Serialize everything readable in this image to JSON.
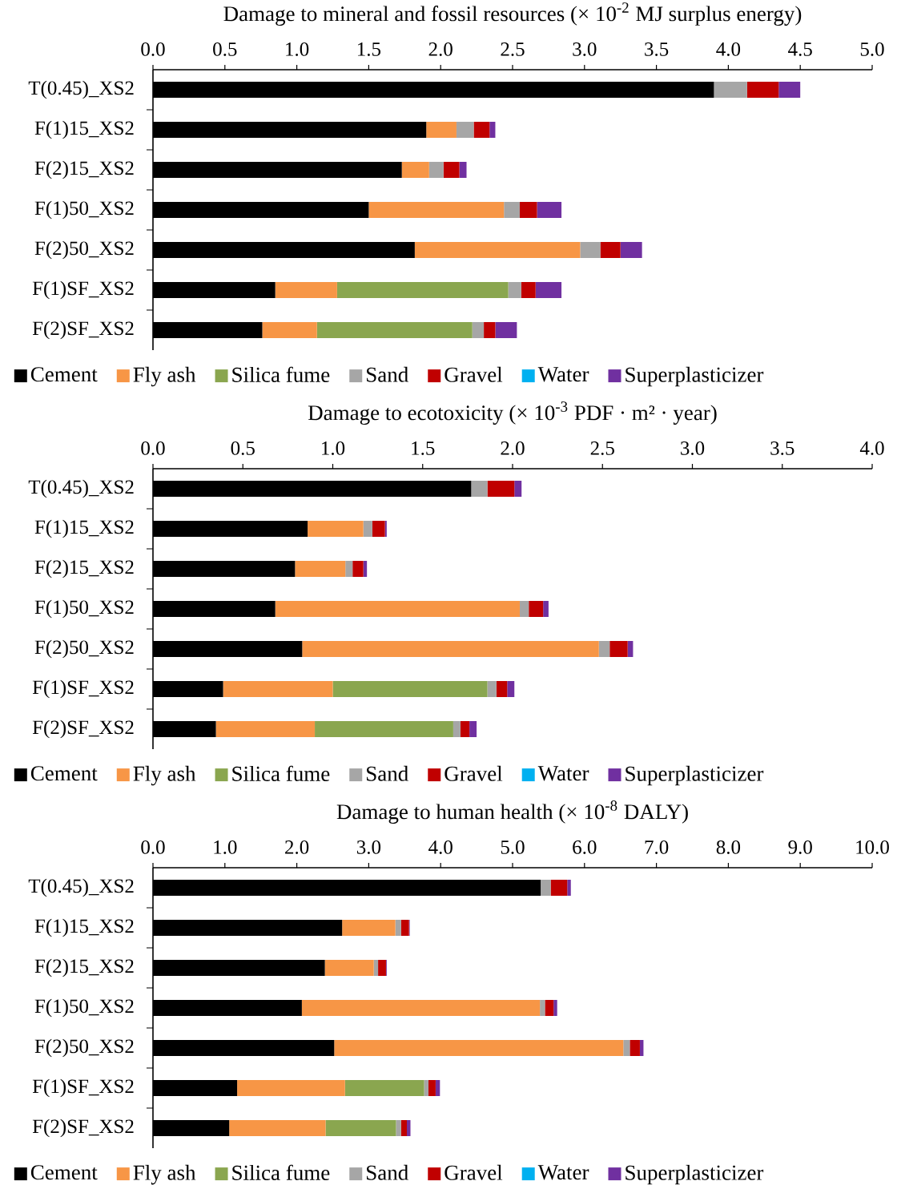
{
  "chart_data": [
    {
      "type": "bar",
      "orientation": "horizontal",
      "stacked": true,
      "legend": "bottom",
      "title": "Damage to mineral and fossil resources (× 10$^{-2}$  MJ surplus energy)",
      "categories": [
        "T(0.45)_XS2",
        "F(1)15_XS2",
        "F(2)15_XS2",
        "F(1)50_XS2",
        "F(2)50_XS2",
        "F(1)SF_XS2",
        "F(2)SF_XS2"
      ],
      "xlim": [
        0,
        5
      ],
      "xticks": [
        {
          "value": 0,
          "label": "0.0"
        },
        {
          "value": 0.5,
          "label": "0.5"
        },
        {
          "value": 1,
          "label": "1.0"
        },
        {
          "value": 1.5,
          "label": "1.5"
        },
        {
          "value": 2,
          "label": "2.0"
        },
        {
          "value": 2.5,
          "label": "2.5"
        },
        {
          "value": 3,
          "label": "3.0"
        },
        {
          "value": 3.5,
          "label": "3.5"
        },
        {
          "value": 4,
          "label": "4.0"
        },
        {
          "value": 4.5,
          "label": "4.5"
        },
        {
          "value": 5,
          "label": "5.0"
        }
      ],
      "series": [
        {
          "name": "Cement",
          "color": "#000000",
          "values": [
            3.9,
            1.9,
            1.73,
            1.5,
            1.82,
            0.85,
            0.76
          ]
        },
        {
          "name": "Fly ash",
          "color": "#f79646",
          "values": [
            0,
            0.21,
            0.19,
            0.94,
            1.15,
            0.43,
            0.38
          ]
        },
        {
          "name": "Silica fume",
          "color": "#8aa64f",
          "values": [
            0,
            0,
            0,
            0,
            0,
            1.19,
            1.08
          ]
        },
        {
          "name": "Sand",
          "color": "#a6a6a6",
          "values": [
            0.23,
            0.12,
            0.1,
            0.11,
            0.14,
            0.09,
            0.08
          ]
        },
        {
          "name": "Gravel",
          "color": "#c00000",
          "values": [
            0.22,
            0.11,
            0.11,
            0.12,
            0.14,
            0.1,
            0.08
          ]
        },
        {
          "name": "Water",
          "color": "#00b0f0",
          "values": [
            0,
            0,
            0,
            0,
            0,
            0,
            0
          ]
        },
        {
          "name": "Superplasticizer",
          "color": "#7030a0",
          "values": [
            0.15,
            0.04,
            0.05,
            0.17,
            0.15,
            0.18,
            0.15
          ]
        }
      ]
    },
    {
      "type": "bar",
      "orientation": "horizontal",
      "stacked": true,
      "legend": "bottom",
      "title": "Damage to ecotoxicity (× 10$^{-3}$  PDF · m² · year)",
      "categories": [
        "T(0.45)_XS2",
        "F(1)15_XS2",
        "F(2)15_XS2",
        "F(1)50_XS2",
        "F(2)50_XS2",
        "F(1)SF_XS2",
        "F(2)SF_XS2"
      ],
      "xlim": [
        0,
        4
      ],
      "xticks": [
        {
          "value": 0,
          "label": "0.0"
        },
        {
          "value": 0.5,
          "label": "0.5"
        },
        {
          "value": 1,
          "label": "1.0"
        },
        {
          "value": 1.5,
          "label": "1.5"
        },
        {
          "value": 2,
          "label": "2.0"
        },
        {
          "value": 2.5,
          "label": "2.5"
        },
        {
          "value": 3,
          "label": "3.0"
        },
        {
          "value": 3.5,
          "label": "3.5"
        },
        {
          "value": 4,
          "label": "4.0"
        }
      ],
      "series": [
        {
          "name": "Cement",
          "color": "#000000",
          "values": [
            1.77,
            0.86,
            0.79,
            0.68,
            0.83,
            0.39,
            0.35
          ]
        },
        {
          "name": "Fly ash",
          "color": "#f79646",
          "values": [
            0,
            0.31,
            0.28,
            1.36,
            1.65,
            0.61,
            0.55
          ]
        },
        {
          "name": "Silica fume",
          "color": "#8aa64f",
          "values": [
            0,
            0,
            0,
            0,
            0,
            0.86,
            0.77
          ]
        },
        {
          "name": "Sand",
          "color": "#a6a6a6",
          "values": [
            0.09,
            0.05,
            0.04,
            0.05,
            0.06,
            0.05,
            0.04
          ]
        },
        {
          "name": "Gravel",
          "color": "#c00000",
          "values": [
            0.15,
            0.07,
            0.06,
            0.08,
            0.1,
            0.06,
            0.05
          ]
        },
        {
          "name": "Water",
          "color": "#00b0f0",
          "values": [
            0,
            0,
            0,
            0,
            0,
            0,
            0
          ]
        },
        {
          "name": "Superplasticizer",
          "color": "#7030a0",
          "values": [
            0.04,
            0.01,
            0.02,
            0.03,
            0.03,
            0.04,
            0.04
          ]
        }
      ]
    },
    {
      "type": "bar",
      "orientation": "horizontal",
      "stacked": true,
      "legend": "bottom",
      "title": "Damage to human health (× 10$^{-8}$  DALY)",
      "categories": [
        "T(0.45)_XS2",
        "F(1)15_XS2",
        "F(2)15_XS2",
        "F(1)50_XS2",
        "F(2)50_XS2",
        "F(1)SF_XS2",
        "F(2)SF_XS2"
      ],
      "xlim": [
        0,
        10
      ],
      "xticks": [
        {
          "value": 0,
          "label": "0.0"
        },
        {
          "value": 1,
          "label": "1.0"
        },
        {
          "value": 2,
          "label": "2.0"
        },
        {
          "value": 3,
          "label": "3.0"
        },
        {
          "value": 4,
          "label": "4.0"
        },
        {
          "value": 5,
          "label": "5.0"
        },
        {
          "value": 6,
          "label": "6.0"
        },
        {
          "value": 7,
          "label": "7.0"
        },
        {
          "value": 8,
          "label": "8.0"
        },
        {
          "value": 9,
          "label": "9.0"
        },
        {
          "value": 10,
          "label": "10.0"
        }
      ],
      "series": [
        {
          "name": "Cement",
          "color": "#000000",
          "values": [
            5.39,
            2.63,
            2.39,
            2.07,
            2.52,
            1.17,
            1.06
          ]
        },
        {
          "name": "Fly ash",
          "color": "#f79646",
          "values": [
            0,
            0.74,
            0.68,
            3.31,
            4.02,
            1.5,
            1.34
          ]
        },
        {
          "name": "Silica fume",
          "color": "#8aa64f",
          "values": [
            0,
            0,
            0,
            0,
            0,
            1.1,
            0.98
          ]
        },
        {
          "name": "Sand",
          "color": "#a6a6a6",
          "values": [
            0.14,
            0.08,
            0.06,
            0.07,
            0.09,
            0.06,
            0.07
          ]
        },
        {
          "name": "Gravel",
          "color": "#c00000",
          "values": [
            0.23,
            0.11,
            0.11,
            0.12,
            0.14,
            0.1,
            0.08
          ]
        },
        {
          "name": "Water",
          "color": "#00b0f0",
          "values": [
            0,
            0,
            0,
            0,
            0,
            0,
            0
          ]
        },
        {
          "name": "Superplasticizer",
          "color": "#7030a0",
          "values": [
            0.05,
            0.01,
            0.01,
            0.05,
            0.05,
            0.06,
            0.05
          ]
        }
      ]
    }
  ]
}
